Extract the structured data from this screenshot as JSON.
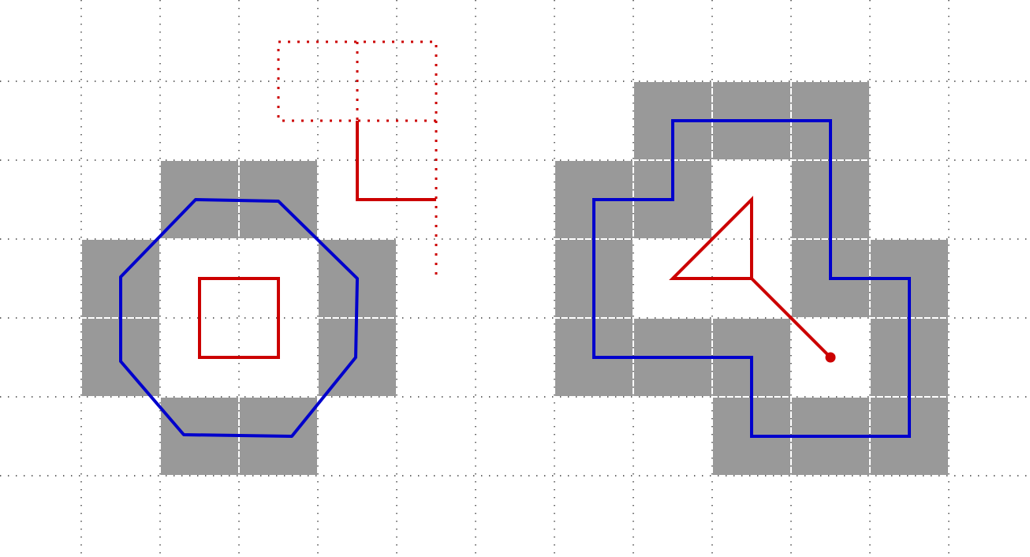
{
  "colors": {
    "background": "#ffffff",
    "grid_dots": "#333333",
    "shaded_cell": "#999999",
    "cell_border": "#ffffff",
    "blue_path": "#0000cc",
    "red_path": "#cc0000"
  },
  "grid": {
    "columns": 13,
    "rows": 7,
    "line_style": "dotted"
  },
  "left_figure": {
    "shaded_cells": [
      [
        2,
        2
      ],
      [
        3,
        2
      ],
      [
        1,
        3
      ],
      [
        4,
        3
      ],
      [
        1,
        4
      ],
      [
        4,
        4
      ],
      [
        2,
        5
      ],
      [
        3,
        5
      ]
    ],
    "blue_octagon": [
      [
        2.45,
        2.5
      ],
      [
        3.5,
        2.52
      ],
      [
        4.5,
        3.5
      ],
      [
        4.48,
        4.5
      ],
      [
        3.67,
        5.5
      ],
      [
        2.3,
        5.48
      ],
      [
        1.5,
        4.55
      ],
      [
        1.5,
        3.48
      ]
    ],
    "red_square": [
      [
        2.5,
        3.5
      ],
      [
        3.5,
        3.5
      ],
      [
        3.5,
        4.5
      ],
      [
        2.5,
        4.5
      ]
    ]
  },
  "top_figure": {
    "dotted_box": [
      [
        3.5,
        0.5
      ],
      [
        5.5,
        0.5
      ],
      [
        5.5,
        1.5
      ],
      [
        3.5,
        1.5
      ]
    ],
    "dotted_divider": [
      [
        4.5,
        0.5
      ],
      [
        4.5,
        1.5
      ]
    ],
    "dotted_tail": [
      [
        5.5,
        1.5
      ],
      [
        5.5,
        3.45
      ]
    ],
    "solid_elbow": [
      [
        4.5,
        1.5
      ],
      [
        4.5,
        2.5
      ],
      [
        5.5,
        2.5
      ]
    ]
  },
  "right_figure": {
    "shaded_cells": [
      [
        8,
        1
      ],
      [
        9,
        1
      ],
      [
        10,
        1
      ],
      [
        7,
        2
      ],
      [
        8,
        2
      ],
      [
        10,
        2
      ],
      [
        7,
        3
      ],
      [
        10,
        3
      ],
      [
        11,
        3
      ],
      [
        7,
        4
      ],
      [
        8,
        4
      ],
      [
        9,
        4
      ],
      [
        11,
        4
      ],
      [
        9,
        5
      ],
      [
        10,
        5
      ],
      [
        11,
        5
      ]
    ],
    "blue_outline": [
      [
        8.5,
        1.5
      ],
      [
        10.5,
        1.5
      ],
      [
        10.5,
        3.5
      ],
      [
        11.5,
        3.5
      ],
      [
        11.5,
        5.5
      ],
      [
        9.5,
        5.5
      ],
      [
        9.5,
        4.5
      ],
      [
        7.5,
        4.5
      ],
      [
        7.5,
        2.5
      ],
      [
        8.5,
        2.5
      ]
    ],
    "red_triangle": [
      [
        9.5,
        2.5
      ],
      [
        9.5,
        3.5
      ],
      [
        8.5,
        3.5
      ]
    ],
    "red_pointer": [
      [
        9.5,
        3.5
      ],
      [
        10.5,
        4.5
      ]
    ],
    "red_dot": [
      10.5,
      4.5
    ]
  }
}
